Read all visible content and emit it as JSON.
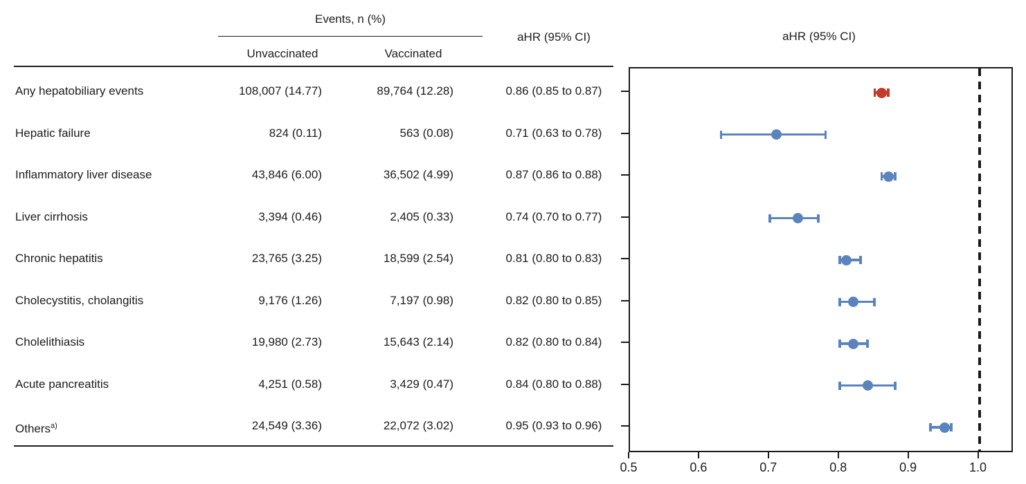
{
  "table": {
    "events_header": "Events, n (%)",
    "columns": {
      "unvaccinated": "Unvaccinated",
      "vaccinated": "Vaccinated",
      "ahr": "aHR (95% CI)"
    }
  },
  "plot": {
    "title": "aHR (95% CI)"
  },
  "colors": {
    "blue": "#5b84bd",
    "red": "#c23b2b",
    "axis": "#1a1a1a"
  },
  "chart_data": {
    "type": "forest",
    "title": "aHR (95% CI)",
    "xlabel": "aHR (95% CI)",
    "xlim": [
      0.5,
      1.05
    ],
    "x_ticks": [
      "0.5",
      "0.6",
      "0.7",
      "0.8",
      "0.9",
      "1.0"
    ],
    "reference_line": 1.0,
    "grid": false,
    "rows": [
      {
        "label": "Any hepatobiliary events",
        "label_sup": "",
        "unvaccinated": "108,007 (14.77)",
        "vaccinated": "89,764 (12.28)",
        "ahr_text": "0.86 (0.85 to 0.87)",
        "ahr": 0.86,
        "ci_low": 0.85,
        "ci_high": 0.87,
        "marker_color": "#c23b2b"
      },
      {
        "label": "Hepatic failure",
        "label_sup": "",
        "unvaccinated": "824 (0.11)",
        "vaccinated": "563 (0.08)",
        "ahr_text": "0.71 (0.63 to 0.78)",
        "ahr": 0.71,
        "ci_low": 0.63,
        "ci_high": 0.78,
        "marker_color": "#5b84bd"
      },
      {
        "label": "Inflammatory liver disease",
        "label_sup": "",
        "unvaccinated": "43,846 (6.00)",
        "vaccinated": "36,502 (4.99)",
        "ahr_text": "0.87 (0.86 to 0.88)",
        "ahr": 0.87,
        "ci_low": 0.86,
        "ci_high": 0.88,
        "marker_color": "#5b84bd"
      },
      {
        "label": "Liver cirrhosis",
        "label_sup": "",
        "unvaccinated": "3,394 (0.46)",
        "vaccinated": "2,405 (0.33)",
        "ahr_text": "0.74 (0.70 to 0.77)",
        "ahr": 0.74,
        "ci_low": 0.7,
        "ci_high": 0.77,
        "marker_color": "#5b84bd"
      },
      {
        "label": "Chronic hepatitis",
        "label_sup": "",
        "unvaccinated": "23,765 (3.25)",
        "vaccinated": "18,599 (2.54)",
        "ahr_text": "0.81 (0.80 to 0.83)",
        "ahr": 0.81,
        "ci_low": 0.8,
        "ci_high": 0.83,
        "marker_color": "#5b84bd"
      },
      {
        "label": "Cholecystitis, cholangitis",
        "label_sup": "",
        "unvaccinated": "9,176 (1.26)",
        "vaccinated": "7,197 (0.98)",
        "ahr_text": "0.82 (0.80 to 0.85)",
        "ahr": 0.82,
        "ci_low": 0.8,
        "ci_high": 0.85,
        "marker_color": "#5b84bd"
      },
      {
        "label": "Cholelithiasis",
        "label_sup": "",
        "unvaccinated": "19,980 (2.73)",
        "vaccinated": "15,643 (2.14)",
        "ahr_text": "0.82 (0.80 to 0.84)",
        "ahr": 0.82,
        "ci_low": 0.8,
        "ci_high": 0.84,
        "marker_color": "#5b84bd"
      },
      {
        "label": "Acute pancreatitis",
        "label_sup": "",
        "unvaccinated": "4,251 (0.58)",
        "vaccinated": "3,429 (0.47)",
        "ahr_text": "0.84 (0.80 to 0.88)",
        "ahr": 0.84,
        "ci_low": 0.8,
        "ci_high": 0.88,
        "marker_color": "#5b84bd"
      },
      {
        "label": "Others",
        "label_sup": "a)",
        "unvaccinated": "24,549 (3.36)",
        "vaccinated": "22,072 (3.02)",
        "ahr_text": "0.95 (0.93 to 0.96)",
        "ahr": 0.95,
        "ci_low": 0.93,
        "ci_high": 0.96,
        "marker_color": "#5b84bd"
      }
    ]
  }
}
